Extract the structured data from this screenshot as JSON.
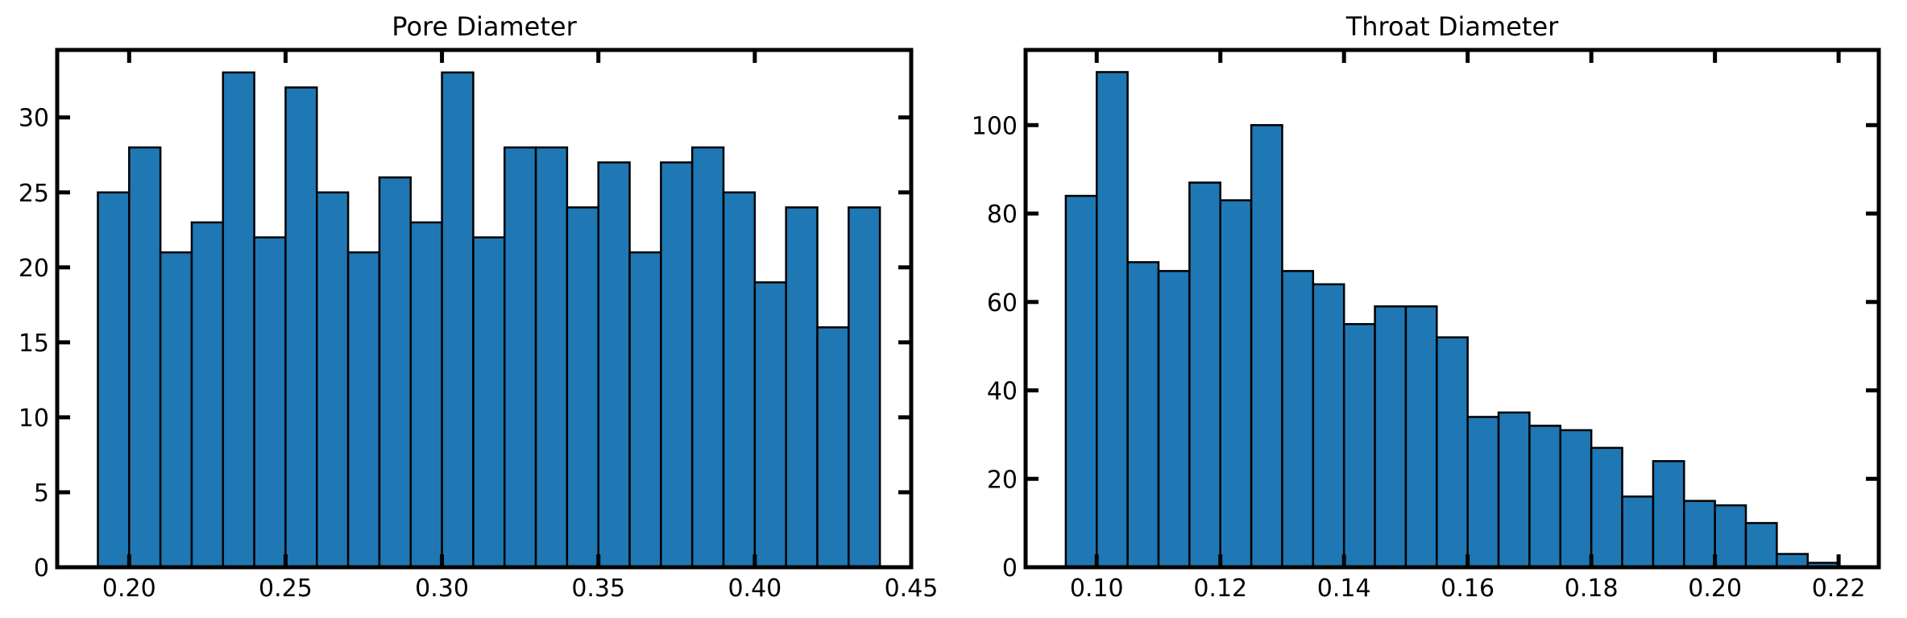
{
  "chart_data": [
    {
      "type": "bar",
      "title": "Pore Diameter",
      "xlabel": "",
      "ylabel": "",
      "bin_width": 0.01,
      "bin_edges": [
        0.19,
        0.2,
        0.21,
        0.22,
        0.23,
        0.24,
        0.25,
        0.26,
        0.27,
        0.28,
        0.29,
        0.3,
        0.31,
        0.32,
        0.33,
        0.34,
        0.35,
        0.36,
        0.37,
        0.38,
        0.39,
        0.4,
        0.41,
        0.42,
        0.43,
        0.44
      ],
      "values": [
        25,
        28,
        21,
        23,
        33,
        22,
        32,
        25,
        21,
        26,
        23,
        33,
        22,
        28,
        28,
        24,
        27,
        21,
        27,
        28,
        25,
        19,
        24,
        16,
        24
      ],
      "xlim": [
        0.177,
        0.45
      ],
      "ylim": [
        0,
        34.5
      ],
      "xticks": [
        0.2,
        0.25,
        0.3,
        0.35,
        0.4,
        0.45
      ],
      "xtick_labels": [
        "0.20",
        "0.25",
        "0.30",
        "0.35",
        "0.40",
        "0.45"
      ],
      "yticks": [
        0,
        5,
        10,
        15,
        20,
        25,
        30
      ],
      "ytick_labels": [
        "0",
        "5",
        "10",
        "15",
        "20",
        "25",
        "30"
      ],
      "grid": false,
      "colors": {
        "bar": "#1f77b4",
        "edge": "#000000"
      }
    },
    {
      "type": "bar",
      "title": "Throat Diameter",
      "xlabel": "",
      "ylabel": "",
      "bin_width": 0.005,
      "bin_edges": [
        0.095,
        0.1,
        0.105,
        0.11,
        0.115,
        0.12,
        0.125,
        0.13,
        0.135,
        0.14,
        0.145,
        0.15,
        0.155,
        0.16,
        0.165,
        0.17,
        0.175,
        0.18,
        0.185,
        0.19,
        0.195,
        0.2,
        0.205,
        0.21,
        0.215,
        0.22
      ],
      "values": [
        84,
        112,
        69,
        67,
        87,
        83,
        100,
        67,
        64,
        55,
        59,
        59,
        52,
        34,
        35,
        32,
        31,
        27,
        16,
        24,
        15,
        14,
        10,
        3,
        1
      ],
      "xlim": [
        0.0885,
        0.2265
      ],
      "ylim": [
        0,
        117
      ],
      "xticks": [
        0.1,
        0.12,
        0.14,
        0.16,
        0.18,
        0.2,
        0.22
      ],
      "xtick_labels": [
        "0.10",
        "0.12",
        "0.14",
        "0.16",
        "0.18",
        "0.20",
        "0.22"
      ],
      "yticks": [
        0,
        20,
        40,
        60,
        80,
        100
      ],
      "ytick_labels": [
        "0",
        "20",
        "40",
        "60",
        "80",
        "100"
      ],
      "grid": false,
      "colors": {
        "bar": "#1f77b4",
        "edge": "#000000"
      }
    }
  ]
}
